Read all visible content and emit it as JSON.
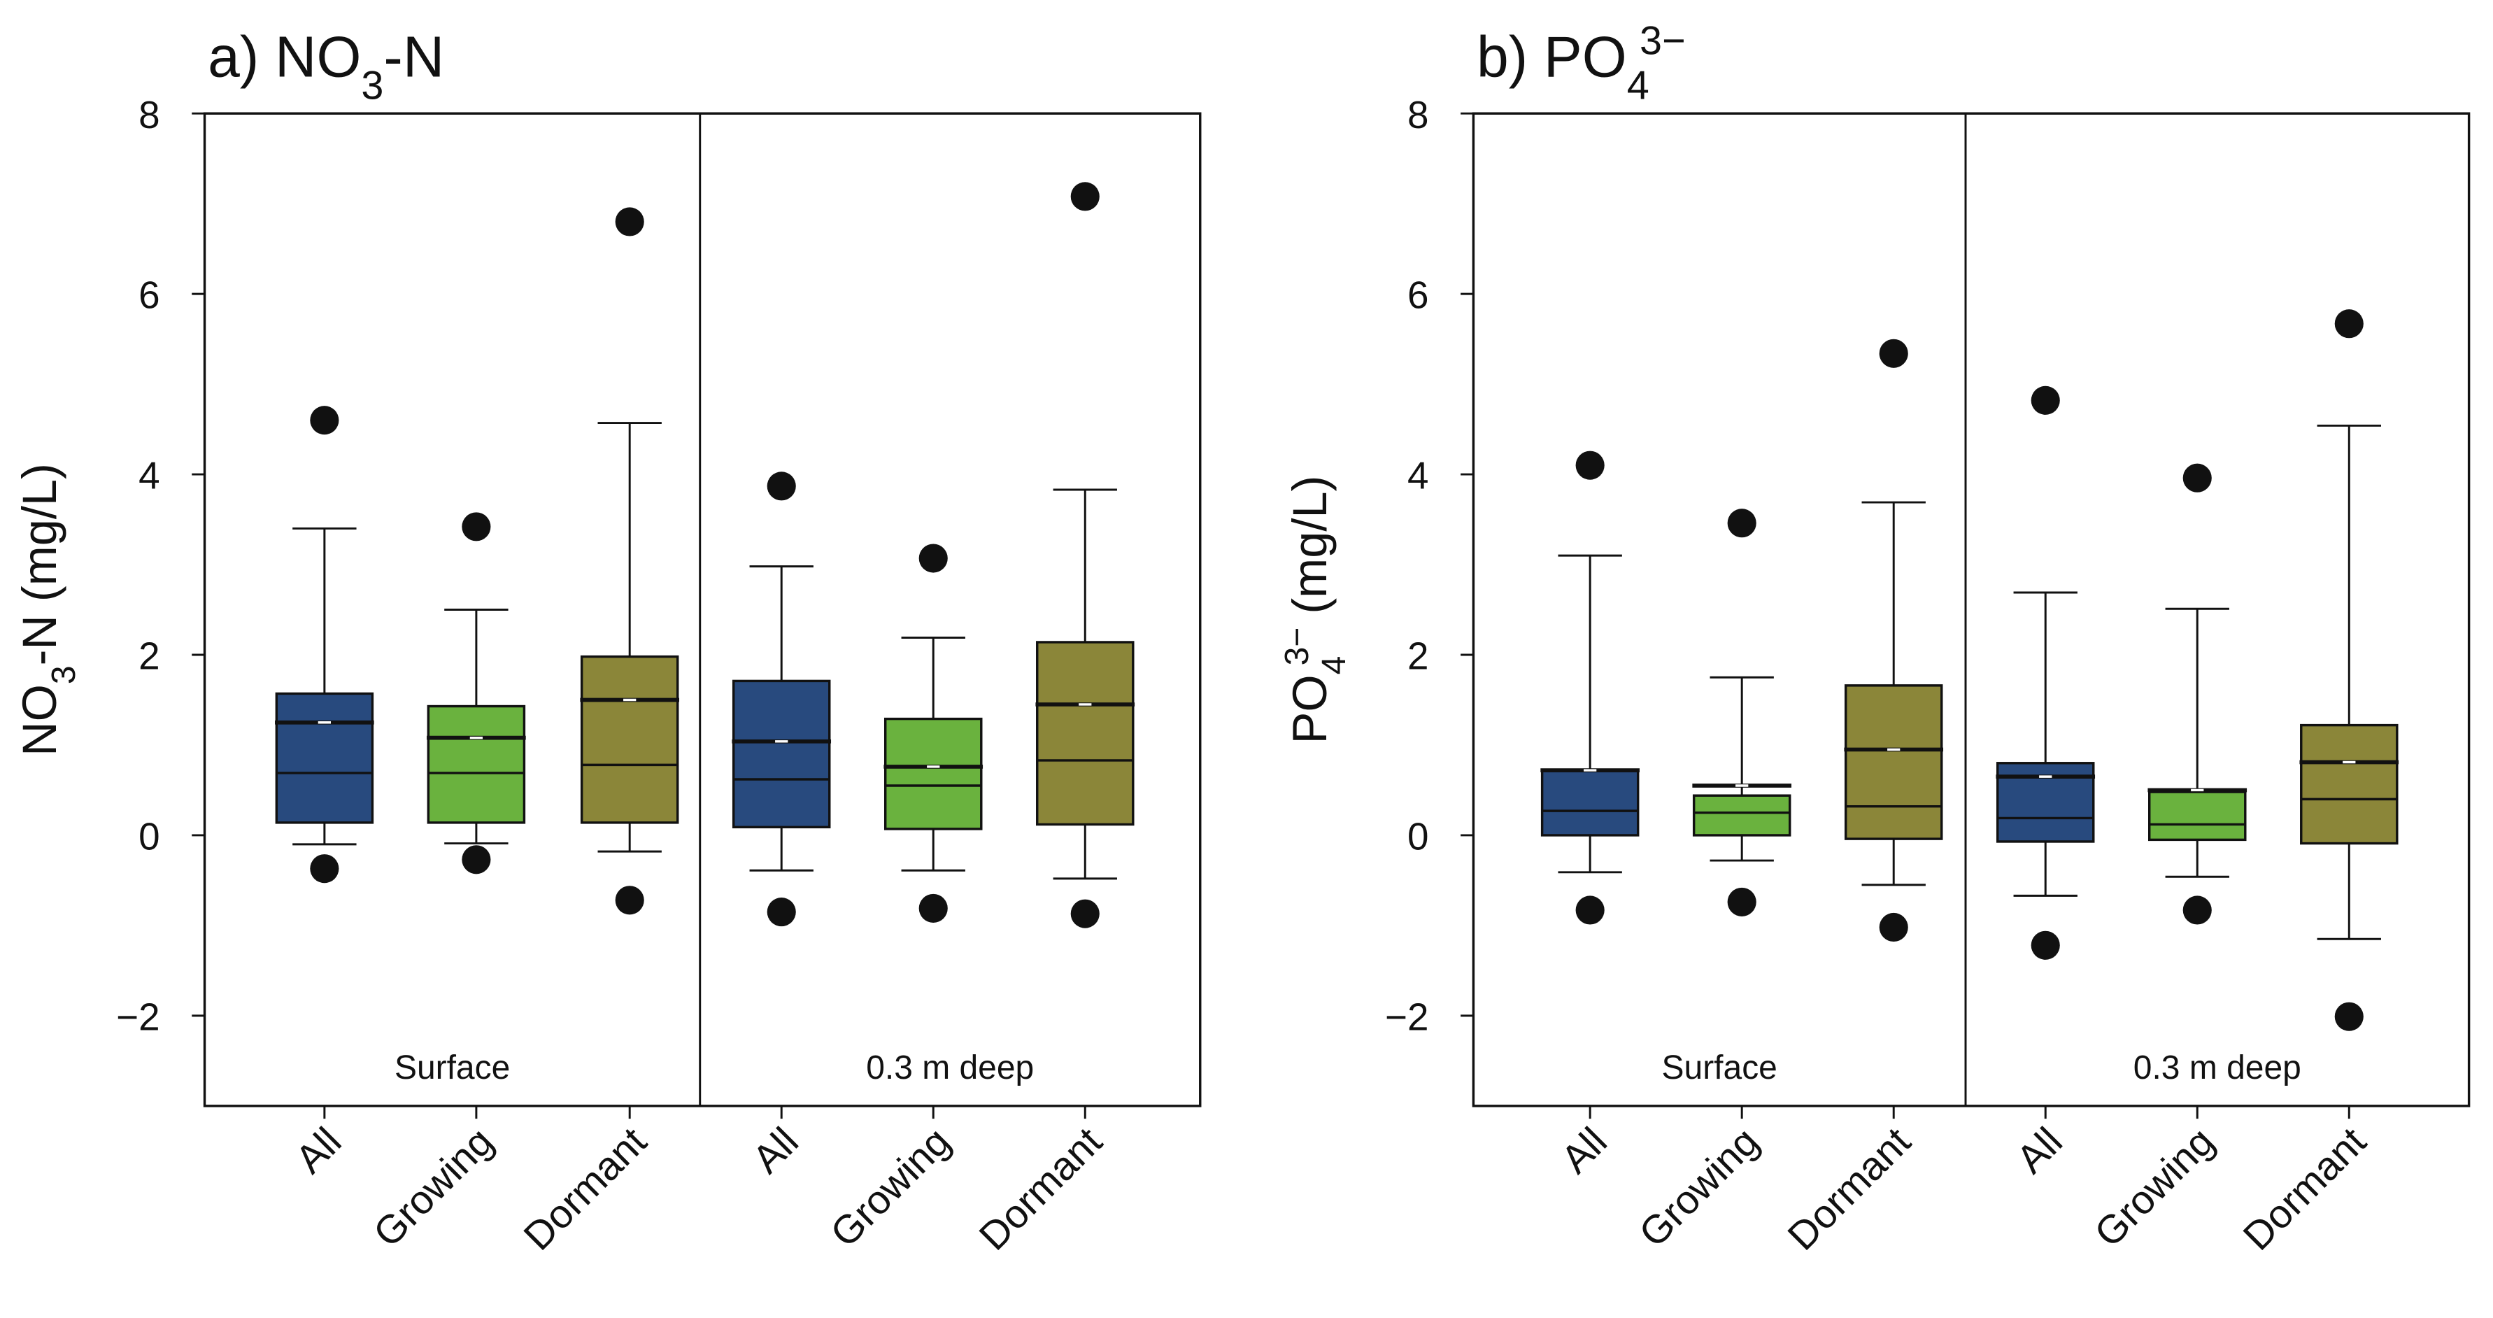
{
  "chart_data": [
    {
      "type": "box",
      "title": {
        "prefix": "a) NO",
        "sub": "3",
        "suffix": "-N",
        "sup": ""
      },
      "ylabel": {
        "prefix": "NO",
        "sub": "3",
        "suffix": "-N (mg/L)",
        "sup": ""
      },
      "ylim": [
        -3,
        8
      ],
      "yticks": [
        -2,
        0,
        2,
        4,
        6,
        8
      ],
      "ytick_labels": [
        "−2",
        "0",
        "2",
        "4",
        "6",
        "8"
      ],
      "groups": [
        "Surface",
        "0.3 m deep"
      ],
      "categories": [
        "All",
        "Growing",
        "Dormant",
        "All",
        "Growing",
        "Dormant"
      ],
      "colors": [
        "#284a7e",
        "#6ab23e",
        "#8b8639",
        "#284a7e",
        "#6ab23e",
        "#8b8639"
      ],
      "boxes": [
        {
          "whisker_low": -0.1,
          "q1": 0.14,
          "median": 0.69,
          "mean": 1.25,
          "q3": 1.57,
          "whisker_high": 3.4,
          "outliers": [
            4.6,
            -0.37
          ]
        },
        {
          "whisker_low": -0.09,
          "q1": 0.14,
          "median": 0.69,
          "mean": 1.08,
          "q3": 1.43,
          "whisker_high": 2.5,
          "outliers": [
            3.42,
            -0.27
          ]
        },
        {
          "whisker_low": -0.18,
          "q1": 0.14,
          "median": 0.78,
          "mean": 1.5,
          "q3": 1.98,
          "whisker_high": 4.57,
          "outliers": [
            6.8,
            -0.72
          ]
        },
        {
          "whisker_low": -0.39,
          "q1": 0.09,
          "median": 0.62,
          "mean": 1.04,
          "q3": 1.71,
          "whisker_high": 2.98,
          "outliers": [
            3.87,
            -0.85
          ]
        },
        {
          "whisker_low": -0.39,
          "q1": 0.07,
          "median": 0.55,
          "mean": 0.76,
          "q3": 1.29,
          "whisker_high": 2.19,
          "outliers": [
            3.07,
            -0.81
          ]
        },
        {
          "whisker_low": -0.48,
          "q1": 0.12,
          "median": 0.83,
          "mean": 1.45,
          "q3": 2.14,
          "whisker_high": 3.83,
          "outliers": [
            7.08,
            -0.87
          ]
        }
      ]
    },
    {
      "type": "box",
      "title": {
        "prefix": "b) PO",
        "sub": "4",
        "suffix": "",
        "sup": "3−"
      },
      "ylabel": {
        "prefix": "PO",
        "sub": "4",
        "suffix": " (mg/L)",
        "sup": "3−"
      },
      "ylim": [
        -3,
        8
      ],
      "yticks": [
        -2,
        0,
        2,
        4,
        6,
        8
      ],
      "ytick_labels": [
        "−2",
        "0",
        "2",
        "4",
        "6",
        "8"
      ],
      "groups": [
        "Surface",
        "0.3 m deep"
      ],
      "categories": [
        "All",
        "Growing",
        "Dormant",
        "All",
        "Growing",
        "Dormant"
      ],
      "colors": [
        "#284a7e",
        "#6ab23e",
        "#8b8639",
        "#284a7e",
        "#6ab23e",
        "#8b8639"
      ],
      "boxes": [
        {
          "whisker_low": -0.41,
          "q1": 0.0,
          "median": 0.27,
          "mean": 0.72,
          "q3": 0.72,
          "whisker_high": 3.1,
          "outliers": [
            4.1,
            -0.83
          ]
        },
        {
          "whisker_low": -0.28,
          "q1": 0.0,
          "median": 0.25,
          "mean": 0.55,
          "q3": 0.44,
          "whisker_high": 1.75,
          "outliers": [
            3.46,
            -0.74
          ]
        },
        {
          "whisker_low": -0.55,
          "q1": -0.04,
          "median": 0.32,
          "mean": 0.95,
          "q3": 1.66,
          "whisker_high": 3.69,
          "outliers": [
            5.34,
            -1.02
          ]
        },
        {
          "whisker_low": -0.67,
          "q1": -0.07,
          "median": 0.19,
          "mean": 0.65,
          "q3": 0.8,
          "whisker_high": 2.69,
          "outliers": [
            4.82,
            -1.22
          ]
        },
        {
          "whisker_low": -0.46,
          "q1": -0.05,
          "median": 0.12,
          "mean": 0.5,
          "q3": 0.48,
          "whisker_high": 2.51,
          "outliers": [
            3.96,
            -0.83
          ]
        },
        {
          "whisker_low": -1.15,
          "q1": -0.09,
          "median": 0.4,
          "mean": 0.81,
          "q3": 1.22,
          "whisker_high": 4.54,
          "outliers": [
            5.67,
            -2.01
          ]
        }
      ]
    }
  ]
}
